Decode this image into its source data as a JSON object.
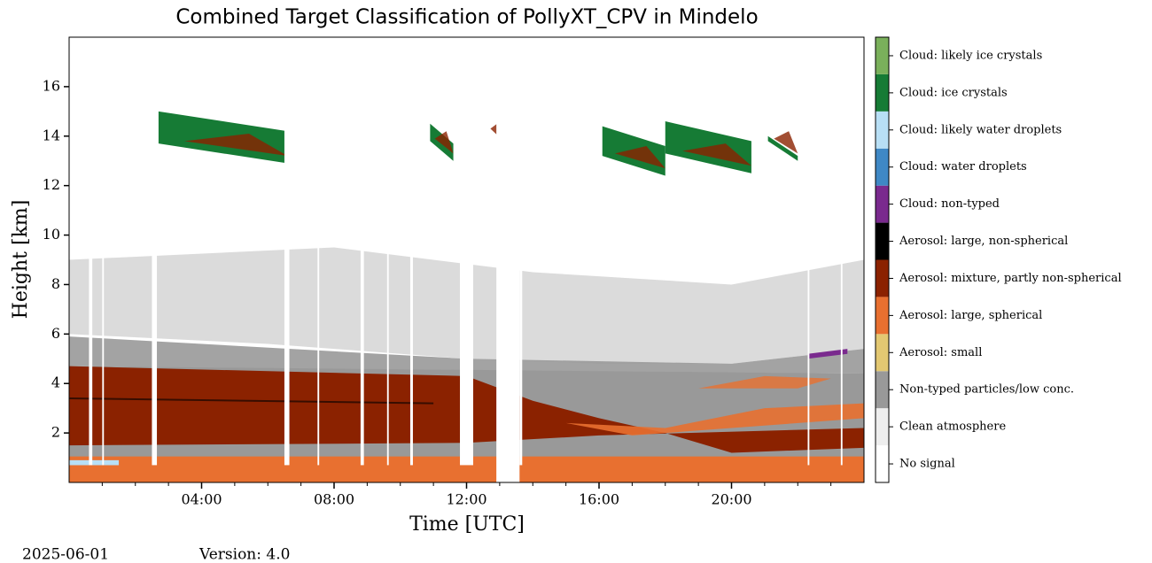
{
  "chart_data": {
    "type": "heatmap",
    "title": "Combined Target Classification of PollyXT_CPV in Mindelo",
    "xlabel": "Time [UTC]",
    "ylabel": "Height [km]",
    "xlim": [
      0,
      24
    ],
    "xticks": [
      {
        "value": 4,
        "label": "04:00"
      },
      {
        "value": 8,
        "label": "08:00"
      },
      {
        "value": 12,
        "label": "12:00"
      },
      {
        "value": 16,
        "label": "16:00"
      },
      {
        "value": 20,
        "label": "20:00"
      }
    ],
    "xminorticks": [
      1,
      2,
      3,
      5,
      6,
      7,
      9,
      10,
      11,
      13,
      14,
      15,
      17,
      18,
      19,
      21,
      22,
      23
    ],
    "ylim": [
      0,
      18
    ],
    "yticks": [
      2,
      4,
      6,
      8,
      10,
      12,
      14,
      16
    ],
    "classes": [
      {
        "name": "No signal",
        "color": "#ffffff"
      },
      {
        "name": "Clean atmosphere",
        "color": "#eeeeee"
      },
      {
        "name": "Non-typed particles/low conc.",
        "color": "#999999"
      },
      {
        "name": "Aerosol: small",
        "color": "#e3c872"
      },
      {
        "name": "Aerosol: large, spherical",
        "color": "#e87030"
      },
      {
        "name": "Aerosol: mixture, partly non-spherical",
        "color": "#8b2200"
      },
      {
        "name": "Aerosol: large, non-spherical",
        "color": "#000000"
      },
      {
        "name": "Cloud: non-typed",
        "color": "#7a2a8e"
      },
      {
        "name": "Cloud: water droplets",
        "color": "#3f88c5"
      },
      {
        "name": "Cloud: likely water droplets",
        "color": "#b8dff5"
      },
      {
        "name": "Cloud: ice crystals",
        "color": "#167b35"
      },
      {
        "name": "Cloud: likely ice crystals",
        "color": "#7ab05b"
      }
    ],
    "date": "2025-06-01",
    "version": "Version: 4.0"
  }
}
